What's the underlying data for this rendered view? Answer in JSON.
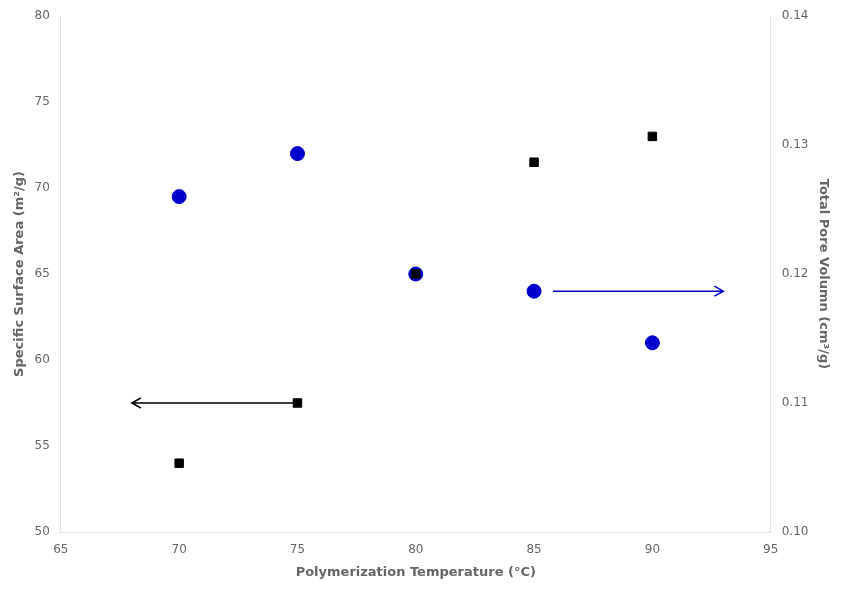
{
  "chart_data": {
    "type": "scatter",
    "xlabel": "Polymerization Temperature (°C)",
    "ylabel": "Specific Surface Area (m²/g)",
    "ylabel2": "Total Pore Volumn (cm³/g)",
    "x": [
      70,
      75,
      80,
      85,
      90
    ],
    "series": [
      {
        "color": "#000000",
        "marker": "square",
        "values": [
          54.0,
          57.5,
          65.0,
          71.5,
          73.0
        ]
      },
      {
        "color": "#0000cc",
        "marker": "circle",
        "values": [
          69.5,
          72.0,
          65.0,
          64.0,
          61.0
        ]
      }
    ],
    "xlim": [
      65,
      95
    ],
    "xticks": [
      65,
      70,
      75,
      80,
      85,
      90,
      95
    ],
    "ylim": [
      50,
      80
    ],
    "yticks": [
      50,
      55,
      60,
      65,
      70,
      75,
      80
    ],
    "y2lim": [
      0.1,
      0.14
    ],
    "y2ticks": [
      {
        "value": 0.1,
        "label": "0.10"
      },
      0.11,
      0.12,
      0.13,
      0.14
    ],
    "annotations": [
      {
        "type": "arrow",
        "x_start": 75.0,
        "x_end": 68.0,
        "y": 57.5,
        "color": "#000000"
      },
      {
        "type": "arrow",
        "x_start": 85.8,
        "x_end": 93.0,
        "y": 64.0,
        "color": "#0000cc"
      }
    ],
    "grid": false,
    "legend": false
  }
}
